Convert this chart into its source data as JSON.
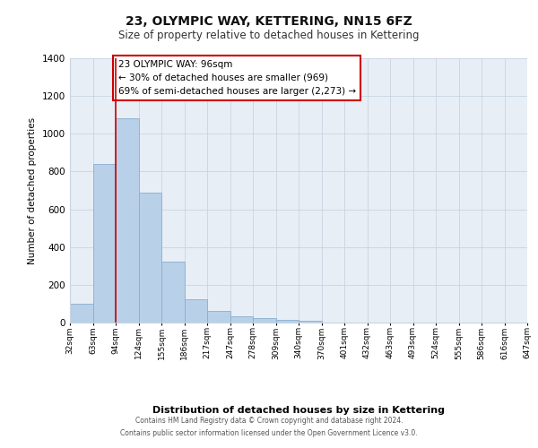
{
  "title": "23, OLYMPIC WAY, KETTERING, NN15 6FZ",
  "subtitle": "Size of property relative to detached houses in Kettering",
  "xlabel": "Distribution of detached houses by size in Kettering",
  "ylabel": "Number of detached properties",
  "bar_values": [
    100,
    840,
    1080,
    690,
    325,
    125,
    62,
    35,
    22,
    12,
    8,
    0,
    0,
    0,
    0,
    0,
    0,
    0,
    0,
    0
  ],
  "bar_labels": [
    "32sqm",
    "63sqm",
    "94sqm",
    "124sqm",
    "155sqm",
    "186sqm",
    "217sqm",
    "247sqm",
    "278sqm",
    "309sqm",
    "340sqm",
    "370sqm",
    "401sqm",
    "432sqm",
    "463sqm",
    "493sqm",
    "524sqm",
    "555sqm",
    "586sqm",
    "616sqm",
    "647sqm"
  ],
  "bar_color": "#b8d0e8",
  "bar_edge_color": "#8aaece",
  "vline_x": 2,
  "vline_color": "#cc0000",
  "annotation_text": "23 OLYMPIC WAY: 96sqm\n← 30% of detached houses are smaller (969)\n69% of semi-detached houses are larger (2,273) →",
  "annotation_box_color": "#ffffff",
  "annotation_border_color": "#cc0000",
  "ylim": [
    0,
    1400
  ],
  "yticks": [
    0,
    200,
    400,
    600,
    800,
    1000,
    1200,
    1400
  ],
  "bg_color": "#e8eef6",
  "footer_line1": "Contains HM Land Registry data © Crown copyright and database right 2024.",
  "footer_line2": "Contains public sector information licensed under the Open Government Licence v3.0.",
  "title_fontsize": 10,
  "subtitle_fontsize": 8.5,
  "figsize": [
    6.0,
    5.0
  ],
  "dpi": 100
}
